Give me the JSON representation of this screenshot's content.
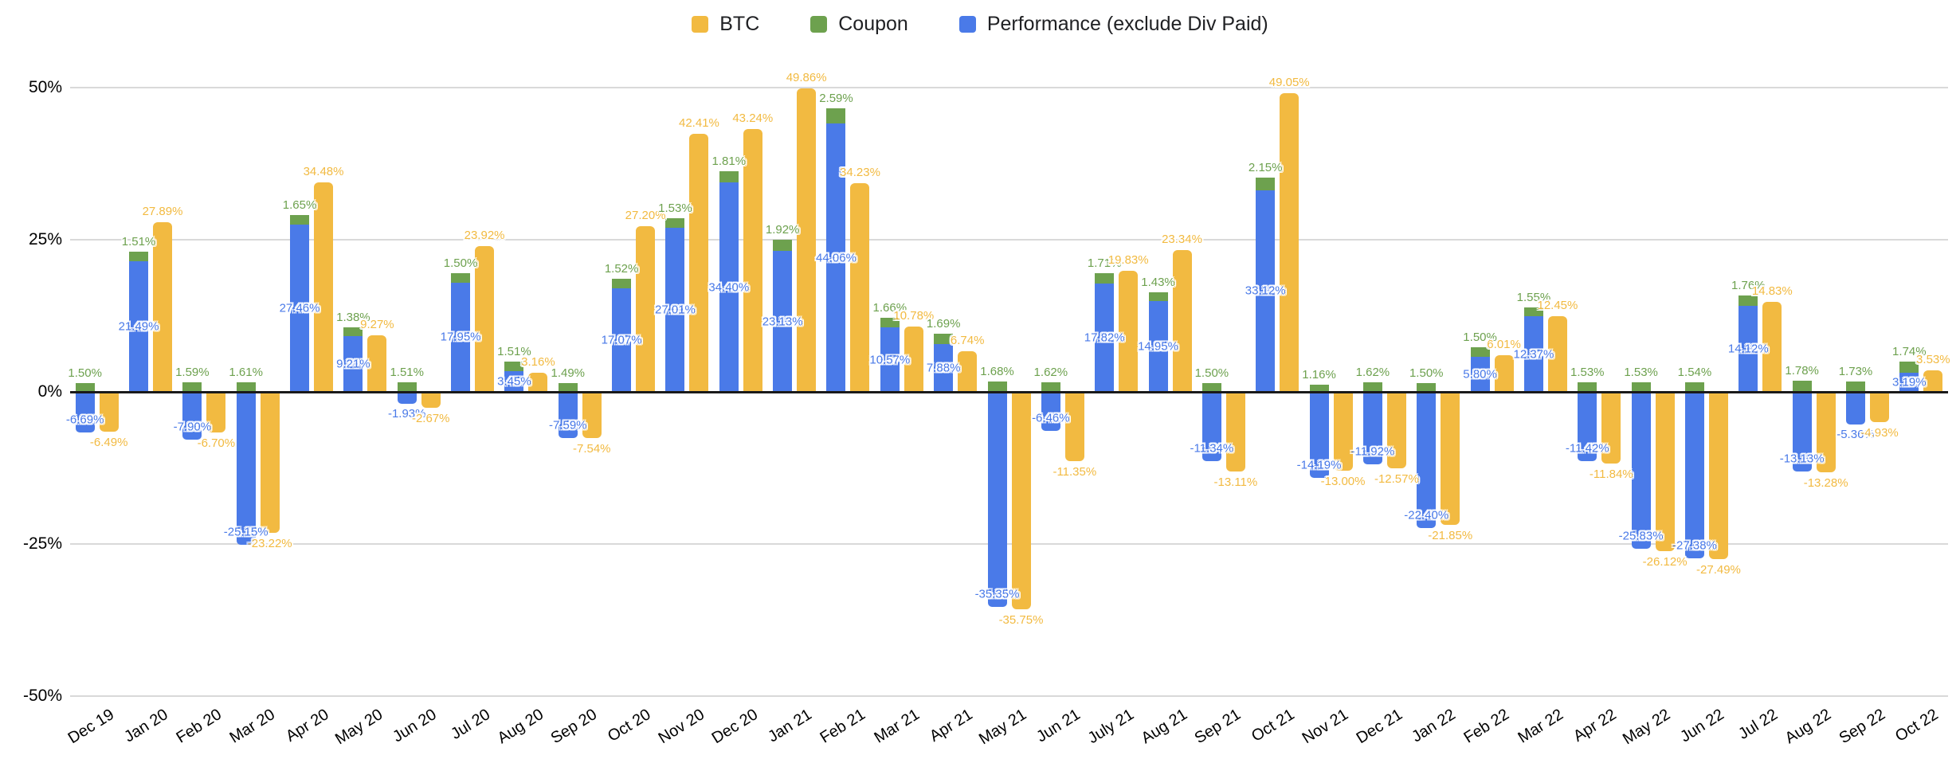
{
  "legend": {
    "items": [
      {
        "id": "btc",
        "label": "BTC",
        "color": "#F2BA41"
      },
      {
        "id": "coupon",
        "label": "Coupon",
        "color": "#6DA14E"
      },
      {
        "id": "performance",
        "label": "Performance (exclude Div Paid)",
        "color": "#4A7AE8"
      }
    ]
  },
  "y_axis": {
    "tick_labels": [
      "50%",
      "25%",
      "0%",
      "-25%",
      "-50%"
    ]
  },
  "chart_data": {
    "type": "bar",
    "title": "",
    "xlabel": "",
    "ylabel": "",
    "ylim": [
      -50,
      50
    ],
    "y_ticks": [
      50,
      25,
      0,
      -25,
      -50
    ],
    "grid": true,
    "legend_position": "top",
    "label_format": "0.00%",
    "structure": "Coupon is stacked on top of Performance in one bar; BTC is a separate adjacent bar",
    "categories": [
      "Dec 19",
      "Jan 20",
      "Feb 20",
      "Mar 20",
      "Apr 20",
      "May 20",
      "Jun 20",
      "Jul 20",
      "Aug 20",
      "Sep 20",
      "Oct 20",
      "Nov 20",
      "Dec 20",
      "Jan 21",
      "Feb 21",
      "Mar 21",
      "Apr 21",
      "May 21",
      "Jun 21",
      "July 21",
      "Aug 21",
      "Sep 21",
      "Oct 21",
      "Nov 21",
      "Dec 21",
      "Jan 22",
      "Feb 22",
      "Mar 22",
      "Apr 22",
      "May 22",
      "Jun 22",
      "Jul 22",
      "Aug 22",
      "Sep 22",
      "Oct 22"
    ],
    "series": [
      {
        "name": "BTC",
        "color": "#F2BA41",
        "values": [
          -6.49,
          27.89,
          -6.7,
          -23.22,
          34.48,
          9.27,
          -2.67,
          23.92,
          3.16,
          -7.54,
          27.2,
          42.41,
          43.24,
          49.86,
          34.23,
          10.78,
          6.74,
          -35.75,
          -11.35,
          19.83,
          23.34,
          -13.11,
          49.05,
          -13.0,
          -12.57,
          -21.85,
          6.01,
          12.45,
          -11.84,
          -26.12,
          -27.49,
          14.83,
          -13.28,
          -4.93,
          3.53
        ]
      },
      {
        "name": "Coupon",
        "color": "#6DA14E",
        "values": [
          1.5,
          1.51,
          1.59,
          1.61,
          1.65,
          1.38,
          1.51,
          1.5,
          1.51,
          1.49,
          1.52,
          1.53,
          1.81,
          1.92,
          2.59,
          1.66,
          1.69,
          1.68,
          1.62,
          1.71,
          1.43,
          1.5,
          2.15,
          1.16,
          1.62,
          1.5,
          1.5,
          1.55,
          1.53,
          1.53,
          1.54,
          1.76,
          1.78,
          1.73,
          1.74
        ]
      },
      {
        "name": "Performance (exclude Div Paid)",
        "color": "#4A7AE8",
        "values": [
          -6.69,
          21.49,
          -7.9,
          -25.15,
          27.46,
          9.21,
          -1.93,
          17.95,
          3.45,
          -7.59,
          17.07,
          27.01,
          34.4,
          23.13,
          44.06,
          10.57,
          7.88,
          -35.35,
          -6.46,
          17.82,
          14.95,
          -11.34,
          33.12,
          -14.19,
          -11.92,
          -22.4,
          5.8,
          12.37,
          -11.42,
          -25.83,
          -27.38,
          14.12,
          -13.13,
          -5.36,
          3.19
        ]
      }
    ]
  }
}
